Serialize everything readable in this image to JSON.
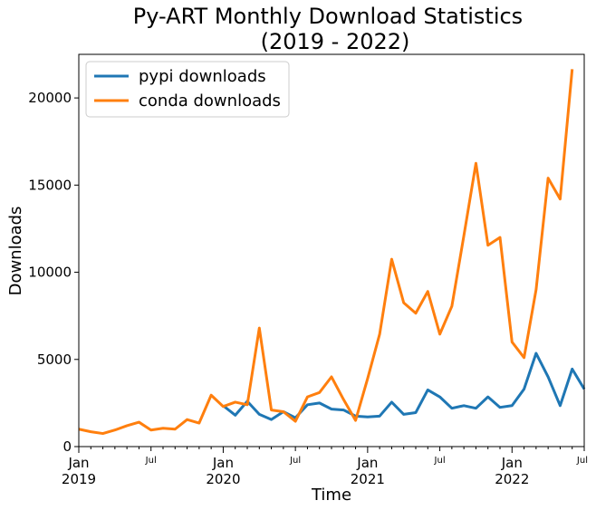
{
  "chart_data": {
    "type": "line",
    "title_line1": "Py-ART Monthly Download Statistics",
    "title_line2": "(2019 - 2022)",
    "xlabel": "Time",
    "ylabel": "Downloads",
    "ylim": [
      0,
      22500
    ],
    "yticks": [
      0,
      5000,
      10000,
      15000,
      20000
    ],
    "x_major_ticks": [
      {
        "month_index": 0,
        "label1": "Jan",
        "label2": "2019"
      },
      {
        "month_index": 12,
        "label1": "Jan",
        "label2": "2020"
      },
      {
        "month_index": 24,
        "label1": "Jan",
        "label2": "2021"
      },
      {
        "month_index": 36,
        "label1": "Jan",
        "label2": "2022"
      }
    ],
    "x_minor_ticks": [
      {
        "month_index": 6,
        "label": "Jul"
      },
      {
        "month_index": 18,
        "label": "Jul"
      },
      {
        "month_index": 30,
        "label": "Jul"
      },
      {
        "month_index": 42,
        "label": "Jul"
      }
    ],
    "legend_position": "upper-left",
    "series": [
      {
        "name": "pypi downloads",
        "color": "#1f77b4",
        "start_index": 12,
        "values": [
          2350,
          1800,
          2600,
          1850,
          1550,
          2000,
          1650,
          2400,
          2500,
          2150,
          2100,
          1750,
          1700,
          1750,
          2550,
          1850,
          1950,
          3250,
          2850,
          2200,
          2350,
          2200,
          2850,
          2250,
          2350,
          3300,
          5350,
          4000,
          2350,
          4450,
          3300
        ]
      },
      {
        "name": "conda downloads",
        "color": "#ff7f0e",
        "start_index": 0,
        "values": [
          1000,
          850,
          750,
          950,
          1200,
          1400,
          950,
          1050,
          1000,
          1550,
          1350,
          2950,
          2300,
          2550,
          2400,
          6800,
          2100,
          2000,
          1450,
          2850,
          3100,
          4000,
          2700,
          1500,
          3900,
          6450,
          10750,
          8250,
          7650,
          8900,
          6450,
          8050,
          12100,
          16250,
          11550,
          12000,
          6000,
          5100,
          9000,
          15400,
          14200,
          21650
        ]
      }
    ]
  }
}
